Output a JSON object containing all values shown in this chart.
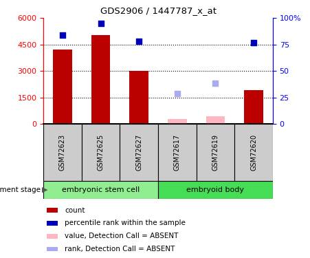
{
  "title": "GDS2906 / 1447787_x_at",
  "samples": [
    "GSM72623",
    "GSM72625",
    "GSM72627",
    "GSM72617",
    "GSM72619",
    "GSM72620"
  ],
  "groups": [
    {
      "label": "embryonic stem cell",
      "color": "#90EE90",
      "indices": [
        0,
        1,
        2
      ]
    },
    {
      "label": "embryoid body",
      "color": "#44DD55",
      "indices": [
        3,
        4,
        5
      ]
    }
  ],
  "bar_values": [
    4200,
    5050,
    3000,
    0,
    0,
    1900
  ],
  "bar_color_present": "#BB0000",
  "bar_color_absent": "#FFB6C1",
  "absent_bar_values": [
    0,
    0,
    0,
    280,
    430,
    0
  ],
  "rank_present": [
    5050,
    5700,
    4700,
    0,
    0,
    4600
  ],
  "rank_absent": [
    0,
    0,
    0,
    1700,
    2300,
    0
  ],
  "rank_present_color": "#0000BB",
  "rank_absent_color": "#AAAAEE",
  "ylim_left": [
    0,
    6000
  ],
  "ylim_right": [
    0,
    100
  ],
  "yticks_left": [
    0,
    1500,
    3000,
    4500,
    6000
  ],
  "yticks_right": [
    0,
    25,
    50,
    75,
    100
  ],
  "stage_label": "development stage",
  "legend_items": [
    {
      "color": "#BB0000",
      "label": "count"
    },
    {
      "color": "#0000BB",
      "label": "percentile rank within the sample"
    },
    {
      "color": "#FFB6C1",
      "label": "value, Detection Call = ABSENT"
    },
    {
      "color": "#AAAAEE",
      "label": "rank, Detection Call = ABSENT"
    }
  ]
}
